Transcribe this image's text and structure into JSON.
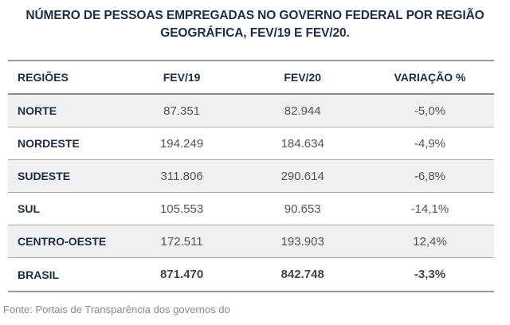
{
  "title_line1": "NÚMERO DE PESSOAS EMPREGADAS NO GOVERNO FEDERAL POR REGIÃO",
  "title_line2": "GEOGRÁFICA, FEV/19 E FEV/20.",
  "headers": [
    "REGIÕES",
    "FEV/19",
    "FEV/20",
    "VARIAÇÃO %"
  ],
  "rows": [
    [
      "NORTE",
      "87.351",
      "82.944",
      "-5,0%"
    ],
    [
      "NORDESTE",
      "194.249",
      "184.634",
      "-4,9%"
    ],
    [
      "SUDESTE",
      "311.806",
      "290.614",
      "-6,8%"
    ],
    [
      "SUL",
      "105.553",
      "90.653",
      "-14,1%"
    ],
    [
      "CENTRO-OESTE",
      "172.511",
      "193.903",
      "12,4%"
    ],
    [
      "BRASIL",
      "871.470",
      "842.748",
      "-3,3%"
    ]
  ],
  "source": "Fonte: Portais de Transparência dos governos do"
}
